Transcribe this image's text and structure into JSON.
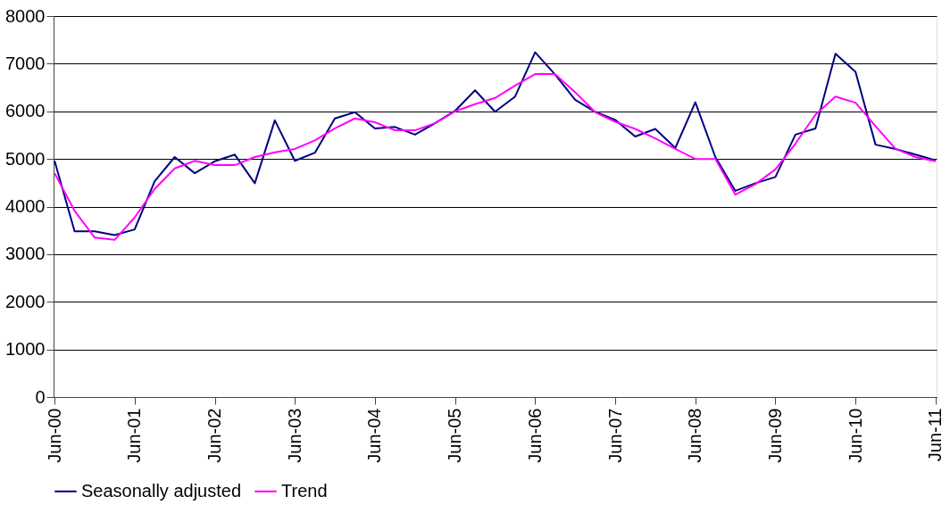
{
  "chart_data": {
    "type": "line",
    "categories": [
      "Jun-00",
      null,
      null,
      null,
      "Jun-01",
      null,
      null,
      null,
      "Jun-02",
      null,
      null,
      null,
      "Jun-03",
      null,
      null,
      null,
      "Jun-04",
      null,
      null,
      null,
      "Jun-05",
      null,
      null,
      null,
      "Jun-06",
      null,
      null,
      null,
      "Jun-07",
      null,
      null,
      null,
      "Jun-08",
      null,
      null,
      null,
      "Jun-09",
      null,
      null,
      null,
      "Jun-10",
      null,
      null,
      null,
      "Jun-11"
    ],
    "series": [
      {
        "name": "Seasonally adjusted",
        "color": "#000080",
        "values": [
          4960,
          3480,
          3480,
          3400,
          3520,
          4530,
          5040,
          4700,
          4950,
          5090,
          4490,
          5810,
          4960,
          5130,
          5850,
          5980,
          5640,
          5670,
          5510,
          5750,
          6010,
          6440,
          5990,
          6310,
          7240,
          6770,
          6240,
          5990,
          5820,
          5470,
          5630,
          5230,
          6190,
          5040,
          4330,
          4490,
          4620,
          5510,
          5640,
          7210,
          6830,
          5300,
          5210,
          5090,
          4970
        ]
      },
      {
        "name": "Trend",
        "color": "#ff00ff",
        "values": [
          4700,
          3910,
          3350,
          3300,
          3770,
          4370,
          4800,
          4960,
          4870,
          4870,
          5040,
          5140,
          5210,
          5390,
          5640,
          5850,
          5770,
          5600,
          5600,
          5750,
          6000,
          6150,
          6280,
          6540,
          6780,
          6780,
          6400,
          5980,
          5780,
          5630,
          5430,
          5210,
          5000,
          5000,
          4250,
          4470,
          4780,
          5320,
          5930,
          6310,
          6180,
          5690,
          5210,
          5040,
          4950
        ]
      }
    ],
    "ylim": [
      0,
      8000
    ],
    "yticks": [
      0,
      1000,
      2000,
      3000,
      4000,
      5000,
      6000,
      7000,
      8000
    ],
    "grid": "y",
    "legend": "bottom",
    "marker": "none",
    "line_style": "solid"
  }
}
